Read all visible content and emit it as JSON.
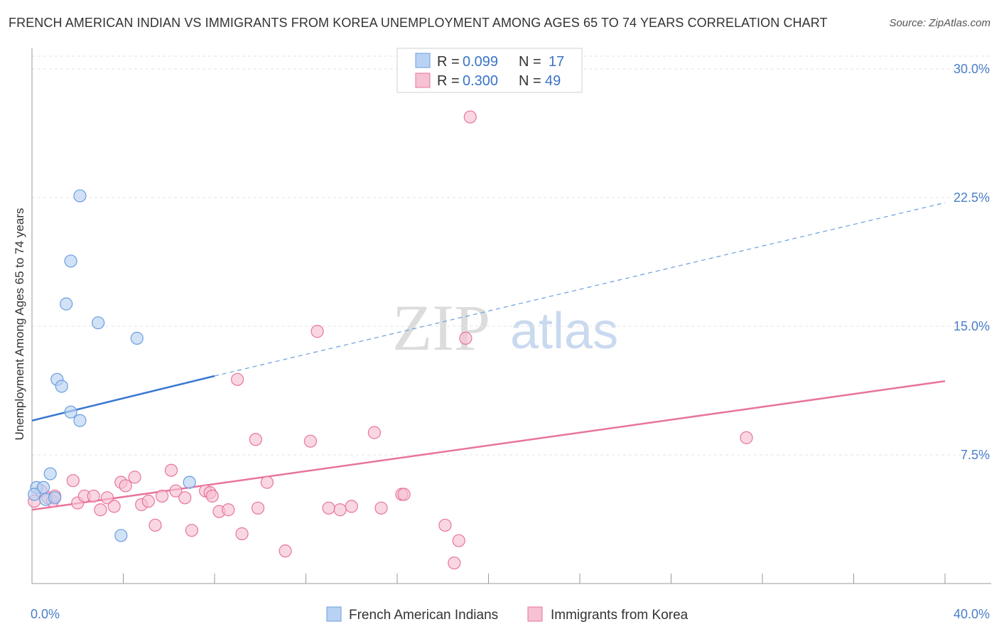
{
  "chart_data": {
    "type": "scatter",
    "title": "FRENCH AMERICAN INDIAN VS IMMIGRANTS FROM KOREA UNEMPLOYMENT AMONG AGES 65 TO 74 YEARS CORRELATION CHART",
    "source": "Source: ZipAtlas.com",
    "ylabel": "Unemployment Among Ages 65 to 74 years",
    "xlim": [
      0,
      40
    ],
    "ylim": [
      0,
      30
    ],
    "x_ticks": [
      {
        "value": 0,
        "label": "0.0%"
      },
      {
        "value": 40,
        "label": "40.0%"
      }
    ],
    "y_ticks": [
      {
        "value": 7.5,
        "label": "7.5%"
      },
      {
        "value": 15,
        "label": "15.0%"
      },
      {
        "value": 22.5,
        "label": "22.5%"
      },
      {
        "value": 30,
        "label": "30.0%"
      }
    ],
    "watermark": {
      "zip": "ZIP",
      "atlas": "atlas"
    },
    "legend": {
      "r_label": "R = ",
      "n_label": "N = ",
      "entries": [
        {
          "r": "0.099",
          "n": "17"
        },
        {
          "r": "0.300",
          "n": "49"
        }
      ]
    },
    "series": [
      {
        "name": "French American Indians",
        "color": "#6b9de0",
        "fill": "#b9d2f3",
        "trend": {
          "x0": 0,
          "y0": 9.5,
          "x1": 8,
          "y1": 12.1,
          "solid_until": 8,
          "dashed_to": 40,
          "y_end": 22.2
        },
        "points": [
          [
            0.2,
            5.6
          ],
          [
            0.5,
            5.6
          ],
          [
            0.6,
            4.9
          ],
          [
            0.8,
            6.4
          ],
          [
            1.0,
            5.0
          ],
          [
            1.1,
            11.9
          ],
          [
            1.3,
            11.5
          ],
          [
            1.7,
            10.0
          ],
          [
            1.7,
            18.8
          ],
          [
            1.5,
            16.3
          ],
          [
            2.1,
            22.6
          ],
          [
            2.1,
            9.5
          ],
          [
            2.9,
            15.2
          ],
          [
            3.9,
            2.8
          ],
          [
            4.6,
            14.3
          ],
          [
            6.9,
            5.9
          ],
          [
            0.1,
            5.2
          ]
        ]
      },
      {
        "name": "Immigrants from Korea",
        "color": "#e8749e",
        "fill": "#f6c1d3",
        "trend": {
          "x0": 0,
          "y0": 4.3,
          "x1": 40,
          "y1": 11.8
        },
        "points": [
          [
            0.1,
            4.8
          ],
          [
            0.4,
            5.4
          ],
          [
            0.7,
            5.0
          ],
          [
            0.9,
            4.8
          ],
          [
            1.0,
            5.1
          ],
          [
            1.8,
            6.0
          ],
          [
            2.0,
            4.7
          ],
          [
            2.3,
            5.1
          ],
          [
            2.7,
            5.1
          ],
          [
            3.0,
            4.3
          ],
          [
            3.3,
            5.0
          ],
          [
            3.6,
            4.5
          ],
          [
            3.9,
            5.9
          ],
          [
            4.1,
            5.7
          ],
          [
            4.5,
            6.2
          ],
          [
            4.8,
            4.6
          ],
          [
            5.1,
            4.8
          ],
          [
            5.4,
            3.4
          ],
          [
            5.7,
            5.1
          ],
          [
            6.1,
            6.6
          ],
          [
            6.3,
            5.4
          ],
          [
            6.7,
            5.0
          ],
          [
            7.0,
            3.1
          ],
          [
            7.6,
            5.4
          ],
          [
            7.8,
            5.3
          ],
          [
            7.9,
            5.1
          ],
          [
            8.2,
            4.2
          ],
          [
            8.6,
            4.3
          ],
          [
            9.0,
            11.9
          ],
          [
            9.2,
            2.9
          ],
          [
            9.8,
            8.4
          ],
          [
            9.9,
            4.4
          ],
          [
            10.3,
            5.9
          ],
          [
            11.1,
            1.9
          ],
          [
            12.2,
            8.3
          ],
          [
            12.5,
            14.7
          ],
          [
            13.0,
            4.4
          ],
          [
            13.5,
            4.3
          ],
          [
            14.0,
            4.5
          ],
          [
            15.0,
            8.8
          ],
          [
            15.3,
            4.4
          ],
          [
            16.2,
            5.2
          ],
          [
            16.3,
            5.2
          ],
          [
            18.1,
            3.4
          ],
          [
            18.5,
            1.2
          ],
          [
            18.7,
            2.5
          ],
          [
            19.0,
            14.3
          ],
          [
            19.2,
            27.2
          ],
          [
            31.3,
            8.5
          ]
        ]
      }
    ]
  }
}
